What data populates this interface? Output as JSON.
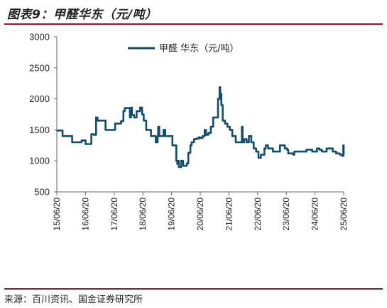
{
  "figure": {
    "title": "图表9：甲醛华东（元/吨）",
    "source": "来源：百川资讯、国金证券研究所"
  },
  "colors": {
    "series": "#0e4d70",
    "rule": "#8b1a1a",
    "axis": "#666666"
  },
  "chart_data": {
    "type": "line",
    "title": "",
    "xlabel": "",
    "ylabel": "",
    "ylim": [
      500,
      3000
    ],
    "yticks": [
      "500",
      "1000",
      "1500",
      "2000",
      "2500",
      "3000"
    ],
    "xticks": [
      "15/06/20",
      "16/06/20",
      "17/06/20",
      "18/06/20",
      "19/06/20",
      "20/06/20",
      "21/06/20",
      "22/06/20",
      "23/06/20",
      "24/06/20",
      "25/06/20"
    ],
    "xlim": [
      "2015-06-20",
      "2025-06-20"
    ],
    "grid": false,
    "legend": "top-center",
    "series": [
      {
        "name": "甲醛 华东（元/吨）",
        "points": [
          [
            "2015-06-20",
            1490
          ],
          [
            "2015-08-01",
            1490
          ],
          [
            "2015-09-01",
            1400
          ],
          [
            "2015-11-15",
            1400
          ],
          [
            "2016-01-01",
            1300
          ],
          [
            "2016-04-01",
            1300
          ],
          [
            "2016-05-01",
            1330
          ],
          [
            "2016-06-20",
            1270
          ],
          [
            "2016-08-15",
            1270
          ],
          [
            "2016-09-01",
            1430
          ],
          [
            "2016-09-20",
            1430
          ],
          [
            "2016-10-01",
            1420
          ],
          [
            "2016-11-01",
            1700
          ],
          [
            "2016-11-20",
            1650
          ],
          [
            "2017-02-01",
            1650
          ],
          [
            "2017-03-01",
            1500
          ],
          [
            "2017-06-01",
            1500
          ],
          [
            "2017-07-01",
            1600
          ],
          [
            "2017-09-15",
            1640
          ],
          [
            "2017-10-15",
            1800
          ],
          [
            "2017-11-01",
            1850
          ],
          [
            "2017-12-15",
            1850
          ],
          [
            "2018-01-05",
            1700
          ],
          [
            "2018-01-20",
            1860
          ],
          [
            "2018-02-01",
            1740
          ],
          [
            "2018-03-01",
            1700
          ],
          [
            "2018-04-01",
            1800
          ],
          [
            "2018-05-15",
            1860
          ],
          [
            "2018-06-10",
            1750
          ],
          [
            "2018-07-01",
            1650
          ],
          [
            "2018-08-01",
            1500
          ],
          [
            "2018-09-15",
            1500
          ],
          [
            "2018-10-01",
            1400
          ],
          [
            "2018-11-15",
            1400
          ],
          [
            "2018-12-01",
            1300
          ],
          [
            "2018-12-25",
            1400
          ],
          [
            "2019-01-01",
            1550
          ],
          [
            "2019-01-15",
            1400
          ],
          [
            "2019-03-01",
            1400
          ],
          [
            "2019-03-10",
            1500
          ],
          [
            "2019-04-01",
            1400
          ],
          [
            "2019-06-15",
            1400
          ],
          [
            "2019-07-01",
            1250
          ],
          [
            "2019-08-15",
            1250
          ],
          [
            "2019-08-20",
            1000
          ],
          [
            "2019-09-01",
            950
          ],
          [
            "2019-09-10",
            1000
          ],
          [
            "2019-09-20",
            900
          ],
          [
            "2019-10-20",
            1000
          ],
          [
            "2019-11-15",
            920
          ],
          [
            "2019-12-15",
            920
          ],
          [
            "2020-01-01",
            960
          ],
          [
            "2020-01-20",
            1130
          ],
          [
            "2020-02-15",
            1250
          ],
          [
            "2020-03-01",
            1300
          ],
          [
            "2020-04-01",
            1350
          ],
          [
            "2020-05-01",
            1360
          ],
          [
            "2020-06-01",
            1380
          ],
          [
            "2020-06-20",
            1370
          ],
          [
            "2020-07-20",
            1400
          ],
          [
            "2020-08-15",
            1500
          ],
          [
            "2020-09-01",
            1420
          ],
          [
            "2020-10-01",
            1450
          ],
          [
            "2020-11-01",
            1550
          ],
          [
            "2020-12-01",
            1700
          ],
          [
            "2021-01-01",
            1700
          ],
          [
            "2021-02-01",
            2000
          ],
          [
            "2021-02-20",
            2190
          ],
          [
            "2021-03-01",
            2080
          ],
          [
            "2021-03-15",
            1900
          ],
          [
            "2021-04-01",
            1650
          ],
          [
            "2021-05-01",
            1600
          ],
          [
            "2021-06-01",
            1550
          ],
          [
            "2021-07-01",
            1500
          ],
          [
            "2021-08-01",
            1400
          ],
          [
            "2021-09-15",
            1300
          ],
          [
            "2021-11-15",
            1300
          ],
          [
            "2021-12-01",
            1550
          ],
          [
            "2021-12-10",
            1300
          ],
          [
            "2022-01-01",
            1350
          ],
          [
            "2022-02-01",
            1300
          ],
          [
            "2022-03-01",
            1400
          ],
          [
            "2022-04-01",
            1300
          ],
          [
            "2022-05-01",
            1200
          ],
          [
            "2022-06-01",
            1150
          ],
          [
            "2022-07-01",
            1050
          ],
          [
            "2022-08-01",
            1100
          ],
          [
            "2022-09-15",
            1200
          ],
          [
            "2022-10-01",
            1250
          ],
          [
            "2022-11-01",
            1200
          ],
          [
            "2022-12-01",
            1200
          ],
          [
            "2023-01-01",
            1150
          ],
          [
            "2023-02-01",
            1150
          ],
          [
            "2023-03-01",
            1150
          ],
          [
            "2023-04-01",
            1250
          ],
          [
            "2023-05-01",
            1250
          ],
          [
            "2023-06-01",
            1200
          ],
          [
            "2023-07-01",
            1180
          ],
          [
            "2023-07-15",
            1120
          ],
          [
            "2023-09-15",
            1100
          ],
          [
            "2023-10-01",
            1150
          ],
          [
            "2023-12-01",
            1150
          ],
          [
            "2024-02-15",
            1150
          ],
          [
            "2024-03-01",
            1180
          ],
          [
            "2024-05-15",
            1150
          ],
          [
            "2024-06-20",
            1150
          ],
          [
            "2024-07-15",
            1200
          ],
          [
            "2024-08-15",
            1180
          ],
          [
            "2024-09-15",
            1150
          ],
          [
            "2024-10-20",
            1150
          ],
          [
            "2024-11-15",
            1200
          ],
          [
            "2025-01-01",
            1200
          ],
          [
            "2025-02-01",
            1150
          ],
          [
            "2025-03-15",
            1120
          ],
          [
            "2025-05-01",
            1100
          ],
          [
            "2025-06-01",
            1080
          ],
          [
            "2025-06-15",
            1250
          ],
          [
            "2025-06-20",
            1100
          ]
        ]
      }
    ]
  }
}
